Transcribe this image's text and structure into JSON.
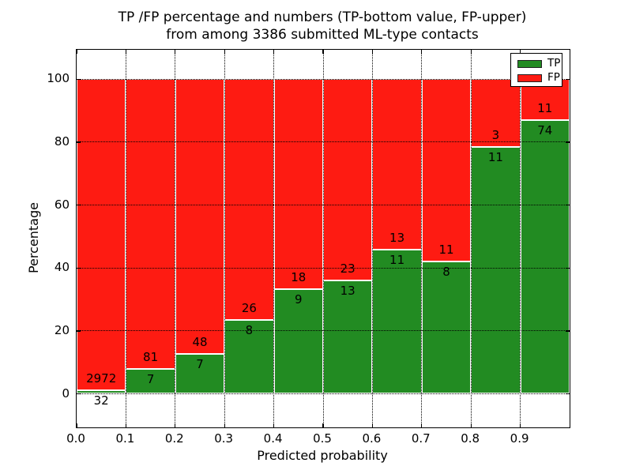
{
  "title": {
    "line1": "TP /FP percentage and numbers (TP-bottom value, FP-upper)",
    "line2": "from among 3386 submitted ML-type contacts"
  },
  "axis": {
    "xlabel": "Predicted probability",
    "ylabel": "Percentage",
    "x_tick_labels": [
      "0.0",
      "0.1",
      "0.2",
      "0.3",
      "0.4",
      "0.5",
      "0.6",
      "0.7",
      "0.8",
      "0.9"
    ],
    "y_tick_values": [
      0,
      20,
      40,
      60,
      80,
      100
    ]
  },
  "legend": {
    "entries": [
      {
        "label": "TP",
        "color": "#228b22"
      },
      {
        "label": "FP",
        "color": "#fe1b12"
      }
    ]
  },
  "chart_data": {
    "type": "bar",
    "stacked": true,
    "normalized_to_percent": true,
    "title": "TP /FP percentage and numbers (TP-bottom value, FP-upper) from among 3386 submitted ML-type contacts",
    "xlabel": "Predicted probability",
    "ylabel": "Percentage",
    "categories": [
      "0.0-0.1",
      "0.1-0.2",
      "0.2-0.3",
      "0.3-0.4",
      "0.4-0.5",
      "0.5-0.6",
      "0.6-0.7",
      "0.7-0.8",
      "0.8-0.9",
      "0.9-1.0"
    ],
    "bin_start": [
      0.0,
      0.1,
      0.2,
      0.3,
      0.4,
      0.5,
      0.6,
      0.7,
      0.8,
      0.9
    ],
    "bin_width": 0.1,
    "series": [
      {
        "name": "TP",
        "color": "#228b22",
        "counts": [
          32,
          7,
          7,
          8,
          9,
          13,
          11,
          8,
          11,
          74
        ],
        "percent": [
          1.1,
          8.0,
          12.7,
          23.5,
          33.3,
          36.1,
          45.8,
          42.1,
          78.6,
          87.1
        ]
      },
      {
        "name": "FP",
        "color": "#fe1b12",
        "counts": [
          2972,
          81,
          48,
          26,
          18,
          23,
          13,
          11,
          3,
          11
        ],
        "percent": [
          98.9,
          92.0,
          87.3,
          76.5,
          66.7,
          63.9,
          54.2,
          57.9,
          21.4,
          12.9
        ]
      }
    ],
    "total_contacts": 3386,
    "xlim": [
      0.0,
      1.0
    ],
    "ylim": [
      -10,
      110
    ],
    "y_ticks": [
      0,
      20,
      40,
      60,
      80,
      100
    ],
    "x_ticks": [
      0.0,
      0.1,
      0.2,
      0.3,
      0.4,
      0.5,
      0.6,
      0.7,
      0.8,
      0.9
    ],
    "grid": true,
    "grid_style": "dotted",
    "legend_position": "upper right"
  }
}
